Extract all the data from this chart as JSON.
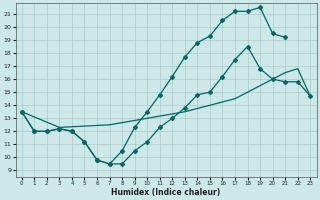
{
  "xlabel": "Humidex (Indice chaleur)",
  "bg_color": "#cce8e8",
  "grid_color": "#aacccc",
  "line_color": "#006666",
  "xlim": [
    -0.5,
    23.5
  ],
  "ylim": [
    8.5,
    21.8
  ],
  "xticks": [
    0,
    1,
    2,
    3,
    4,
    5,
    6,
    7,
    8,
    9,
    10,
    11,
    12,
    13,
    14,
    15,
    16,
    17,
    18,
    19,
    20,
    21,
    22,
    23
  ],
  "yticks": [
    9,
    10,
    11,
    12,
    13,
    14,
    15,
    16,
    17,
    18,
    19,
    20,
    21
  ],
  "curve_max_x": [
    0,
    1,
    2,
    3,
    4,
    5,
    6,
    7,
    8,
    9,
    10,
    11,
    12,
    13,
    14,
    15,
    16,
    17,
    18,
    19,
    20,
    21,
    22,
    23
  ],
  "curve_max_y": [
    13.5,
    12.0,
    12.0,
    12.2,
    12.0,
    11.2,
    9.8,
    9.5,
    10.5,
    12.3,
    13.5,
    14.8,
    16.2,
    17.7,
    18.8,
    19.3,
    20.5,
    21.2,
    21.2,
    21.5,
    19.5,
    19.2,
    null,
    null
  ],
  "curve_min_x": [
    0,
    1,
    2,
    3,
    4,
    5,
    6,
    7,
    8,
    9,
    10,
    11,
    12,
    13,
    14,
    15,
    16,
    17,
    18,
    19,
    20,
    21,
    22,
    23
  ],
  "curve_min_y": [
    13.5,
    12.0,
    12.0,
    12.2,
    12.0,
    11.2,
    9.8,
    9.5,
    9.5,
    10.5,
    11.2,
    12.3,
    13.0,
    13.8,
    14.8,
    15.0,
    16.2,
    17.5,
    18.5,
    16.8,
    16.0,
    15.8,
    15.8,
    14.7
  ],
  "curve_mean_x": [
    0,
    3,
    7,
    10,
    13,
    15,
    17,
    18,
    19,
    20,
    21,
    22,
    23
  ],
  "curve_mean_y": [
    13.5,
    12.3,
    12.5,
    13.0,
    13.5,
    14.0,
    14.5,
    15.0,
    15.5,
    16.0,
    16.5,
    16.8,
    14.7
  ]
}
